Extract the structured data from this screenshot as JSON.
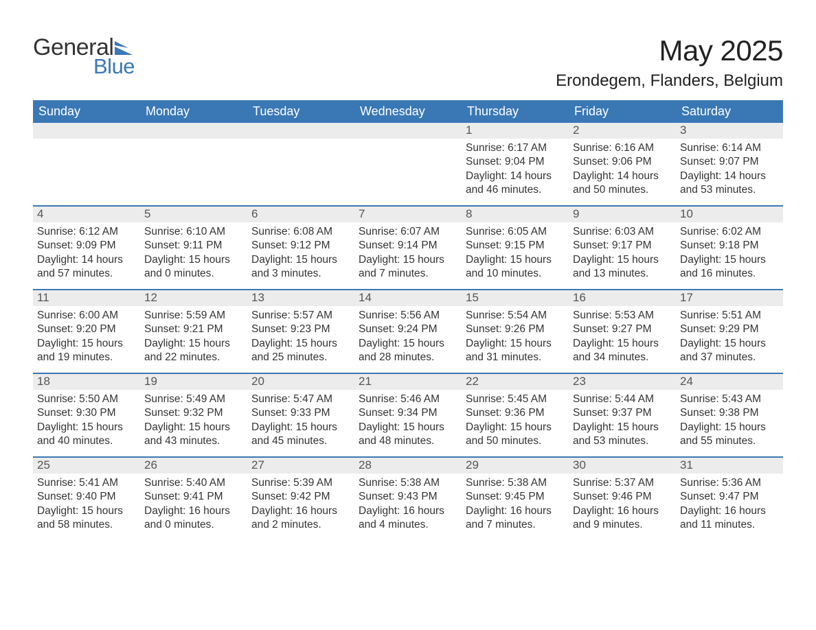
{
  "logo": {
    "text1": "General",
    "text2": "Blue",
    "brand_color": "#3a78b5"
  },
  "header": {
    "title": "May 2025",
    "location": "Erondegem, Flanders, Belgium"
  },
  "calendar": {
    "type": "table",
    "header_bg": "#3a78b5",
    "header_fg": "#ffffff",
    "row_border_color": "#3a78b5",
    "daynum_bg": "#ececec",
    "background_color": "#ffffff",
    "text_color": "#333333",
    "weekdays": [
      "Sunday",
      "Monday",
      "Tuesday",
      "Wednesday",
      "Thursday",
      "Friday",
      "Saturday"
    ],
    "weeks": [
      [
        {
          "empty": true
        },
        {
          "empty": true
        },
        {
          "empty": true
        },
        {
          "empty": true
        },
        {
          "num": "1",
          "sr": "Sunrise: 6:17 AM",
          "ss": "Sunset: 9:04 PM",
          "d1": "Daylight: 14 hours",
          "d2": "and 46 minutes."
        },
        {
          "num": "2",
          "sr": "Sunrise: 6:16 AM",
          "ss": "Sunset: 9:06 PM",
          "d1": "Daylight: 14 hours",
          "d2": "and 50 minutes."
        },
        {
          "num": "3",
          "sr": "Sunrise: 6:14 AM",
          "ss": "Sunset: 9:07 PM",
          "d1": "Daylight: 14 hours",
          "d2": "and 53 minutes."
        }
      ],
      [
        {
          "num": "4",
          "sr": "Sunrise: 6:12 AM",
          "ss": "Sunset: 9:09 PM",
          "d1": "Daylight: 14 hours",
          "d2": "and 57 minutes."
        },
        {
          "num": "5",
          "sr": "Sunrise: 6:10 AM",
          "ss": "Sunset: 9:11 PM",
          "d1": "Daylight: 15 hours",
          "d2": "and 0 minutes."
        },
        {
          "num": "6",
          "sr": "Sunrise: 6:08 AM",
          "ss": "Sunset: 9:12 PM",
          "d1": "Daylight: 15 hours",
          "d2": "and 3 minutes."
        },
        {
          "num": "7",
          "sr": "Sunrise: 6:07 AM",
          "ss": "Sunset: 9:14 PM",
          "d1": "Daylight: 15 hours",
          "d2": "and 7 minutes."
        },
        {
          "num": "8",
          "sr": "Sunrise: 6:05 AM",
          "ss": "Sunset: 9:15 PM",
          "d1": "Daylight: 15 hours",
          "d2": "and 10 minutes."
        },
        {
          "num": "9",
          "sr": "Sunrise: 6:03 AM",
          "ss": "Sunset: 9:17 PM",
          "d1": "Daylight: 15 hours",
          "d2": "and 13 minutes."
        },
        {
          "num": "10",
          "sr": "Sunrise: 6:02 AM",
          "ss": "Sunset: 9:18 PM",
          "d1": "Daylight: 15 hours",
          "d2": "and 16 minutes."
        }
      ],
      [
        {
          "num": "11",
          "sr": "Sunrise: 6:00 AM",
          "ss": "Sunset: 9:20 PM",
          "d1": "Daylight: 15 hours",
          "d2": "and 19 minutes."
        },
        {
          "num": "12",
          "sr": "Sunrise: 5:59 AM",
          "ss": "Sunset: 9:21 PM",
          "d1": "Daylight: 15 hours",
          "d2": "and 22 minutes."
        },
        {
          "num": "13",
          "sr": "Sunrise: 5:57 AM",
          "ss": "Sunset: 9:23 PM",
          "d1": "Daylight: 15 hours",
          "d2": "and 25 minutes."
        },
        {
          "num": "14",
          "sr": "Sunrise: 5:56 AM",
          "ss": "Sunset: 9:24 PM",
          "d1": "Daylight: 15 hours",
          "d2": "and 28 minutes."
        },
        {
          "num": "15",
          "sr": "Sunrise: 5:54 AM",
          "ss": "Sunset: 9:26 PM",
          "d1": "Daylight: 15 hours",
          "d2": "and 31 minutes."
        },
        {
          "num": "16",
          "sr": "Sunrise: 5:53 AM",
          "ss": "Sunset: 9:27 PM",
          "d1": "Daylight: 15 hours",
          "d2": "and 34 minutes."
        },
        {
          "num": "17",
          "sr": "Sunrise: 5:51 AM",
          "ss": "Sunset: 9:29 PM",
          "d1": "Daylight: 15 hours",
          "d2": "and 37 minutes."
        }
      ],
      [
        {
          "num": "18",
          "sr": "Sunrise: 5:50 AM",
          "ss": "Sunset: 9:30 PM",
          "d1": "Daylight: 15 hours",
          "d2": "and 40 minutes."
        },
        {
          "num": "19",
          "sr": "Sunrise: 5:49 AM",
          "ss": "Sunset: 9:32 PM",
          "d1": "Daylight: 15 hours",
          "d2": "and 43 minutes."
        },
        {
          "num": "20",
          "sr": "Sunrise: 5:47 AM",
          "ss": "Sunset: 9:33 PM",
          "d1": "Daylight: 15 hours",
          "d2": "and 45 minutes."
        },
        {
          "num": "21",
          "sr": "Sunrise: 5:46 AM",
          "ss": "Sunset: 9:34 PM",
          "d1": "Daylight: 15 hours",
          "d2": "and 48 minutes."
        },
        {
          "num": "22",
          "sr": "Sunrise: 5:45 AM",
          "ss": "Sunset: 9:36 PM",
          "d1": "Daylight: 15 hours",
          "d2": "and 50 minutes."
        },
        {
          "num": "23",
          "sr": "Sunrise: 5:44 AM",
          "ss": "Sunset: 9:37 PM",
          "d1": "Daylight: 15 hours",
          "d2": "and 53 minutes."
        },
        {
          "num": "24",
          "sr": "Sunrise: 5:43 AM",
          "ss": "Sunset: 9:38 PM",
          "d1": "Daylight: 15 hours",
          "d2": "and 55 minutes."
        }
      ],
      [
        {
          "num": "25",
          "sr": "Sunrise: 5:41 AM",
          "ss": "Sunset: 9:40 PM",
          "d1": "Daylight: 15 hours",
          "d2": "and 58 minutes."
        },
        {
          "num": "26",
          "sr": "Sunrise: 5:40 AM",
          "ss": "Sunset: 9:41 PM",
          "d1": "Daylight: 16 hours",
          "d2": "and 0 minutes."
        },
        {
          "num": "27",
          "sr": "Sunrise: 5:39 AM",
          "ss": "Sunset: 9:42 PM",
          "d1": "Daylight: 16 hours",
          "d2": "and 2 minutes."
        },
        {
          "num": "28",
          "sr": "Sunrise: 5:38 AM",
          "ss": "Sunset: 9:43 PM",
          "d1": "Daylight: 16 hours",
          "d2": "and 4 minutes."
        },
        {
          "num": "29",
          "sr": "Sunrise: 5:38 AM",
          "ss": "Sunset: 9:45 PM",
          "d1": "Daylight: 16 hours",
          "d2": "and 7 minutes."
        },
        {
          "num": "30",
          "sr": "Sunrise: 5:37 AM",
          "ss": "Sunset: 9:46 PM",
          "d1": "Daylight: 16 hours",
          "d2": "and 9 minutes."
        },
        {
          "num": "31",
          "sr": "Sunrise: 5:36 AM",
          "ss": "Sunset: 9:47 PM",
          "d1": "Daylight: 16 hours",
          "d2": "and 11 minutes."
        }
      ]
    ]
  }
}
